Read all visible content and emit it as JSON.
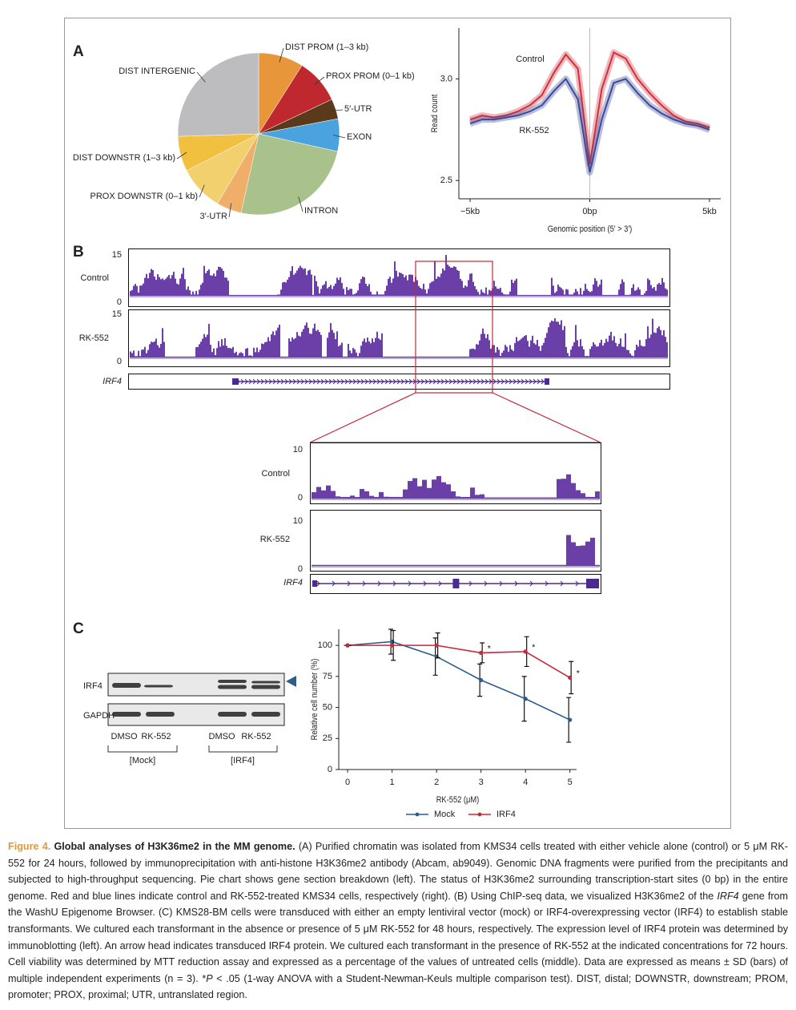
{
  "panels": [
    "A",
    "B",
    "C"
  ],
  "chart_data": [
    {
      "type": "pie",
      "categories": [
        "DIST PROM (1–3 kb)",
        "PROX PROM (0–1 kb)",
        "5′-UTR",
        "EXON",
        "INTRON",
        "3′-UTR",
        "PROX DOWNSTR (0–1 kb)",
        "DIST DOWNSTR (1–3 kb)",
        "DIST INTERGENIC"
      ],
      "values": [
        9,
        9,
        4,
        6.5,
        25,
        5,
        9,
        7,
        25.5
      ],
      "colors": [
        "#e8963a",
        "#c0282f",
        "#5a3a1a",
        "#4aa3df",
        "#a9c28c",
        "#efae6a",
        "#f3d06e",
        "#f0c03e",
        "#bdbdbf"
      ]
    },
    {
      "type": "line",
      "x_label": "Genomic position (5′ > 3′)",
      "y_label": "Read count",
      "x": [
        -5,
        -4.5,
        -4,
        -3.5,
        -3,
        -2.5,
        -2,
        -1.5,
        -1,
        -0.5,
        0,
        0.5,
        1,
        1.5,
        2,
        2.5,
        3,
        3.5,
        4,
        4.5,
        5
      ],
      "series": [
        {
          "name": "Control",
          "color": "#d0303c",
          "values": [
            2.8,
            2.82,
            2.81,
            2.82,
            2.84,
            2.87,
            2.92,
            3.03,
            3.12,
            3.05,
            2.58,
            2.95,
            3.13,
            3.1,
            3.0,
            2.93,
            2.87,
            2.82,
            2.79,
            2.78,
            2.76
          ]
        },
        {
          "name": "RK-552",
          "color": "#3a4a9a",
          "values": [
            2.78,
            2.8,
            2.8,
            2.81,
            2.82,
            2.84,
            2.87,
            2.94,
            3.0,
            2.9,
            2.54,
            2.8,
            2.98,
            3.0,
            2.93,
            2.87,
            2.83,
            2.8,
            2.78,
            2.77,
            2.75
          ]
        }
      ],
      "xlim": [
        -5.47,
        5.47
      ],
      "ylim": [
        2.41,
        3.25
      ],
      "xticks": [
        {
          "value": -5,
          "label": "−5kb"
        },
        {
          "value": 0,
          "label": "0bp"
        },
        {
          "value": 5,
          "label": "5kb"
        }
      ],
      "yticks": [
        2.5,
        {
          "value": 3,
          "label": "3.0"
        }
      ]
    },
    {
      "type": "line",
      "x_label": "RK-552 (μM)",
      "y_label": "Relative cell number (%)",
      "x": [
        0,
        1,
        2,
        3,
        4,
        5
      ],
      "series": [
        {
          "name": "Mock",
          "color": "#2b5d8e",
          "values": [
            100,
            103,
            91,
            72,
            57,
            40
          ],
          "errors": [
            0,
            10,
            15,
            13,
            18,
            18
          ]
        },
        {
          "name": "IRF4",
          "color": "#c8283a",
          "values": [
            100,
            100,
            100,
            94,
            95,
            74
          ],
          "errors": [
            0,
            12,
            10,
            8,
            12,
            13
          ]
        }
      ],
      "annotations": [
        {
          "text": "*",
          "x": 3
        },
        {
          "text": "*",
          "x": 4
        },
        {
          "text": "*",
          "x": 5
        }
      ],
      "xlim": [
        -0.2,
        5.15
      ],
      "ylim": [
        0,
        113
      ],
      "xticks": [
        0,
        1,
        2,
        3,
        4,
        5
      ],
      "yticks": [
        0,
        25,
        50,
        75,
        100
      ],
      "legend": "bottom"
    }
  ],
  "tracks": {
    "labels": [
      "Control",
      "RK-552"
    ],
    "gene": "IRF4",
    "overview_yticks": [
      0,
      15
    ],
    "zoom_yticks": [
      0,
      10
    ]
  },
  "blot": {
    "rows": [
      "IRF4",
      "GAPDH"
    ],
    "lanes": [
      "DMSO",
      "RK-552",
      "DMSO",
      "RK-552"
    ],
    "groups": [
      "[Mock]",
      "[IRF4]"
    ]
  },
  "caption": {
    "label": "Figure 4.",
    "title": "Global analyses of H3K36me2 in the MM genome.",
    "segments": [
      "(A) Purified chromatin was isolated from KMS34 cells treated with either vehicle alone (control) or 5 μM RK-552 for 24 hours, followed by immunoprecipitation with anti-histone H3K36me2 antibody (Abcam, ab9049). Genomic DNA fragments were purified from the precipitants and subjected to high-throughput sequencing. Pie chart shows gene section breakdown (left). The status of H3K36me2 surrounding transcription-start sites (0 bp) in the entire genome. Red and blue lines indicate control and RK-552-treated KMS34 cells, respectively (right). (B) Using ChIP-seq data, we visualized H3K36me2 of the",
      "IRF4",
      "gene from the WashU Epigenome Browser. (C) KMS28-BM cells were transduced with either an empty lentiviral vector (mock) or IRF4-overexpressing vector (IRF4) to establish stable transformants. We cultured each transformant in the absence or presence of 5 μM RK-552 for 48 hours, respectively. The expression level of IRF4 protein was determined by immunoblotting (left). An arrow head indicates transduced IRF4 protein. We cultured each transformant in the presence of RK-552 at the indicated concentrations for 72 hours. Cell viability was determined by MTT reduction assay and expressed as a percentage of the values of untreated cells (middle). Data are expressed as means ± SD (bars) of multiple independent experiments (n = 3). *",
      "P",
      "< .05 (1-way ANOVA with a Student-Newman-Keuls multiple comparison test). DIST, distal; DOWNSTR, downstream; PROM, promoter; PROX, proximal; UTR, untranslated region."
    ]
  }
}
